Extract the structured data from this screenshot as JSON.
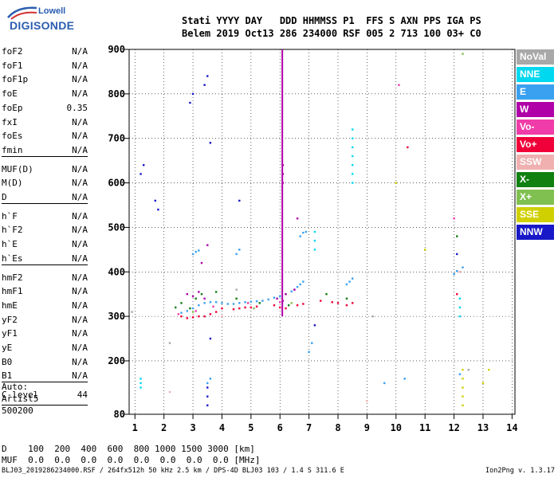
{
  "logo": {
    "line1": "Lowell",
    "line2": "DIGISONDE"
  },
  "header": {
    "row1": "Stati YYYY DAY   DDD HHMMSS P1  FFS S AXN PPS IGA PS",
    "row2": "Belem 2019 Oct13 286 234000 RSF 005 2 713 100 03+ C0"
  },
  "params": {
    "group1": [
      {
        "name": "foF2",
        "value": "N/A"
      },
      {
        "name": "foF1",
        "value": "N/A"
      },
      {
        "name": "foF1p",
        "value": "N/A"
      },
      {
        "name": "foE",
        "value": "N/A"
      },
      {
        "name": "foEp",
        "value": "0.35"
      },
      {
        "name": "fxI",
        "value": "N/A"
      },
      {
        "name": "foEs",
        "value": "N/A"
      },
      {
        "name": "fmin",
        "value": "N/A"
      }
    ],
    "group2": [
      {
        "name": "MUF(D)",
        "value": "N/A"
      },
      {
        "name": "M(D)",
        "value": "N/A"
      },
      {
        "name": "D",
        "value": "N/A"
      }
    ],
    "group3": [
      {
        "name": "h`F",
        "value": "N/A"
      },
      {
        "name": "h`F2",
        "value": "N/A"
      },
      {
        "name": "h`E",
        "value": "N/A"
      },
      {
        "name": "h`Es",
        "value": "N/A"
      }
    ],
    "group4": [
      {
        "name": "hmF2",
        "value": "N/A"
      },
      {
        "name": "hmF1",
        "value": "N/A"
      },
      {
        "name": "hmE",
        "value": "N/A"
      },
      {
        "name": "yF2",
        "value": "N/A"
      },
      {
        "name": "yF1",
        "value": "N/A"
      },
      {
        "name": "yE",
        "value": "N/A"
      },
      {
        "name": "B0",
        "value": "N/A"
      },
      {
        "name": "B1",
        "value": "N/A"
      }
    ],
    "clevel": {
      "name": "C-level",
      "value": "44"
    }
  },
  "auto": {
    "l1": "Auto:",
    "l2": "Artist5",
    "l3": "500200"
  },
  "legend": [
    {
      "label": "NoVal",
      "color": "#a8a8a8"
    },
    {
      "label": "NNE",
      "color": "#00d8f0"
    },
    {
      "label": "E",
      "color": "#3aa0f0"
    },
    {
      "label": "W",
      "color": "#b000a8"
    },
    {
      "label": "Vo-",
      "color": "#f03ca8"
    },
    {
      "label": "Vo+",
      "color": "#f00038"
    },
    {
      "label": "SSW",
      "color": "#f0b0b0"
    },
    {
      "label": "X-",
      "color": "#108010"
    },
    {
      "label": "X+",
      "color": "#80c050"
    },
    {
      "label": "SSE",
      "color": "#d0d000"
    },
    {
      "label": "NNW",
      "color": "#1818c8"
    }
  ],
  "dmuf": {
    "row1": "D    100  200  400  600  800 1000 1500 3000 [km]",
    "row2": "MUF  0.0  0.0  0.0  0.0  0.0  0.0  0.0  0.0 [MHz]"
  },
  "footer": "BLJ03_2019286234000.RSF / 264fx512h 50 kHz 2.5 km / DPS-4D BLJ03 103 / 1.4 S 311.6 E",
  "version": "Ion2Png v. 1.3.17",
  "chart_data": {
    "type": "scatter",
    "xlim": [
      0.8,
      14.1
    ],
    "ylim": [
      80,
      900
    ],
    "xticks": [
      1,
      2,
      3,
      4,
      5,
      6,
      7,
      8,
      9,
      10,
      11,
      12,
      13,
      14
    ],
    "yticks": [
      80,
      200,
      300,
      400,
      500,
      600,
      700,
      800,
      900
    ],
    "grid": true,
    "series": [
      {
        "name": "E",
        "color": "#3aa0f0",
        "x": [
          2.6,
          2.8,
          3.0,
          3.2,
          3.4,
          3.6,
          3.8,
          4.0,
          4.2,
          4.4,
          4.6,
          4.8,
          5.0,
          5.2,
          5.4,
          5.6,
          5.8,
          6.0,
          6.2,
          6.4,
          6.5,
          6.6,
          6.7,
          6.8,
          8.3,
          8.4,
          8.5,
          3.0,
          3.1,
          3.2,
          4.5,
          4.6,
          6.7,
          6.8,
          6.9,
          12.0,
          12.1,
          12.3,
          3.5,
          3.6,
          7.0,
          7.1,
          9.6,
          10.3,
          12.2
        ],
        "y": [
          308,
          312,
          318,
          325,
          330,
          332,
          332,
          330,
          328,
          328,
          330,
          332,
          333,
          334,
          335,
          338,
          342,
          345,
          350,
          356,
          360,
          366,
          372,
          378,
          372,
          378,
          385,
          440,
          445,
          448,
          440,
          450,
          480,
          488,
          490,
          395,
          402,
          410,
          150,
          160,
          220,
          240,
          150,
          160,
          170
        ]
      },
      {
        "name": "NNE",
        "color": "#00d8f0",
        "x": [
          8.5,
          8.5,
          8.5,
          8.5,
          8.5,
          8.5,
          8.5,
          7.2,
          7.2,
          7.2,
          12.2,
          12.2,
          12.2,
          1.2,
          1.2,
          1.2
        ],
        "y": [
          600,
          620,
          640,
          660,
          680,
          700,
          720,
          450,
          470,
          490,
          300,
          320,
          340,
          140,
          150,
          160
        ]
      },
      {
        "name": "W",
        "color": "#b000a8",
        "x": [
          2.8,
          3.0,
          3.2,
          3.4,
          5.9,
          6.1,
          6.2,
          6.1,
          6.1,
          6.1,
          6.5,
          6.6,
          3.3,
          3.5
        ],
        "y": [
          350,
          345,
          355,
          340,
          340,
          335,
          350,
          600,
          620,
          640,
          360,
          520,
          420,
          460
        ]
      },
      {
        "name": "Vo+",
        "color": "#f00038",
        "x": [
          2.6,
          2.8,
          3.0,
          3.2,
          3.4,
          3.6,
          3.8,
          4.0,
          4.4,
          4.6,
          4.8,
          5.0,
          5.2,
          5.8,
          6.0,
          6.2,
          6.6,
          6.8,
          7.4,
          7.8,
          8.0,
          8.3,
          8.5,
          10.4,
          12.1
        ],
        "y": [
          300,
          296,
          298,
          300,
          300,
          305,
          310,
          318,
          316,
          318,
          320,
          320,
          322,
          325,
          320,
          318,
          325,
          328,
          335,
          332,
          330,
          325,
          330,
          680,
          350
        ]
      },
      {
        "name": "X-",
        "color": "#108010",
        "x": [
          2.4,
          2.6,
          2.9,
          3.1,
          3.3,
          3.8,
          4.5,
          5.3,
          6.3,
          7.6,
          8.3,
          12.1
        ],
        "y": [
          320,
          330,
          318,
          340,
          350,
          355,
          340,
          330,
          325,
          350,
          340,
          480
        ]
      },
      {
        "name": "NNW",
        "color": "#1818c8",
        "x": [
          1.2,
          1.3,
          1.7,
          1.8,
          2.9,
          3.0,
          3.4,
          3.5,
          3.5,
          3.5,
          3.5,
          3.6,
          3.6,
          4.6,
          7.2,
          12.1
        ],
        "y": [
          620,
          640,
          560,
          540,
          780,
          800,
          820,
          840,
          100,
          120,
          140,
          690,
          250,
          560,
          280,
          440
        ]
      },
      {
        "name": "NoVal",
        "color": "#a8a8a8",
        "x": [
          0.9,
          2.2,
          4.5,
          9.2,
          12.5
        ],
        "y": [
          310,
          240,
          360,
          300,
          180
        ]
      },
      {
        "name": "SSE",
        "color": "#d0d000",
        "x": [
          12.3,
          12.3,
          12.3,
          12.3,
          12.3,
          13.0,
          13.2,
          10.0,
          11.0
        ],
        "y": [
          100,
          120,
          140,
          160,
          180,
          150,
          180,
          600,
          450
        ]
      },
      {
        "name": "Vo-",
        "color": "#f03ca8",
        "x": [
          2.5,
          3.1,
          3.7,
          4.9,
          6.0,
          10.1,
          12.0
        ],
        "y": [
          305,
          312,
          322,
          330,
          332,
          820,
          520
        ]
      },
      {
        "name": "X+",
        "color": "#80c050",
        "x": [
          3.0,
          5.1,
          6.4,
          12.3
        ],
        "y": [
          310,
          318,
          330,
          890
        ]
      },
      {
        "name": "SSW",
        "color": "#f0b0b0",
        "x": [
          2.2,
          4.0,
          9.0,
          12.2
        ],
        "y": [
          130,
          300,
          110,
          400
        ]
      }
    ]
  }
}
